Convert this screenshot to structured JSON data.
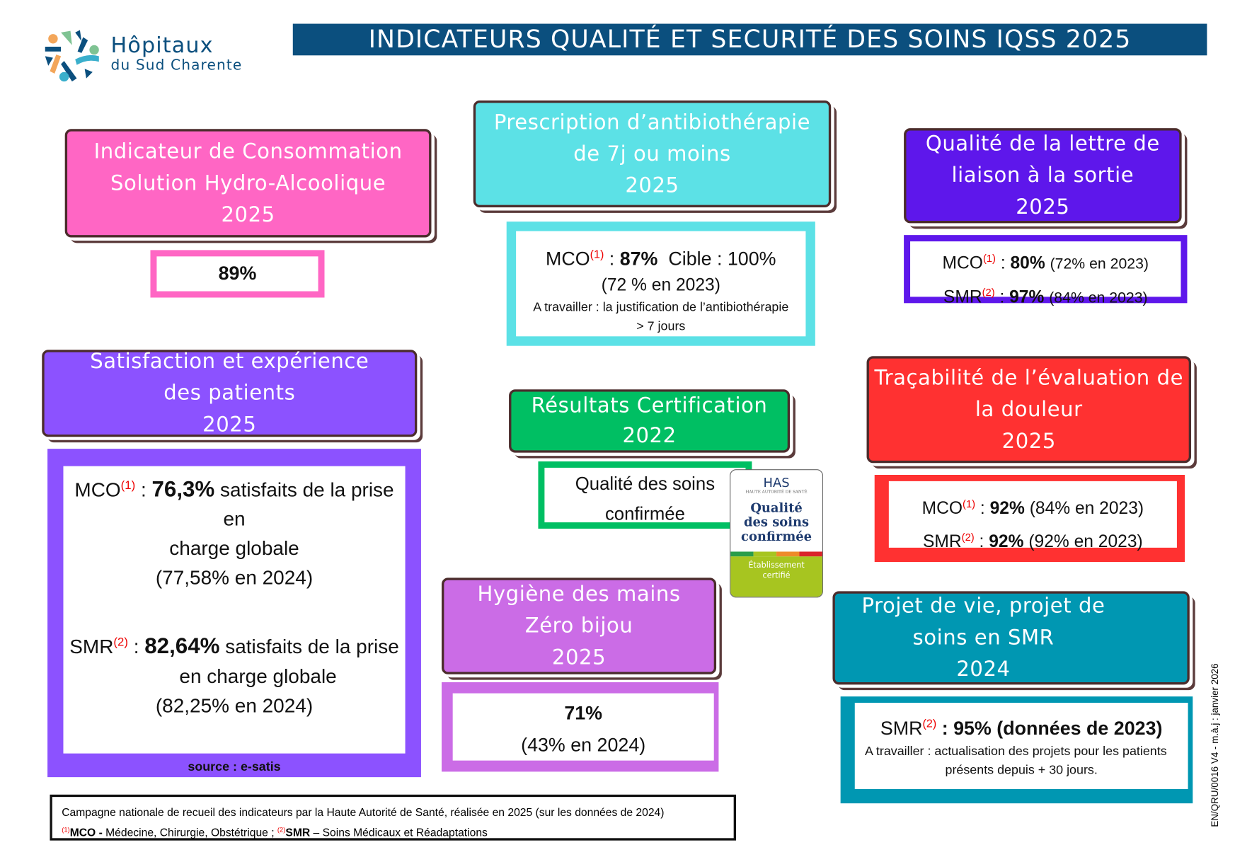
{
  "logo": {
    "line1": "Hôpitaux",
    "line2": "du Sud Charente"
  },
  "title": "INDICATEURS QUALITÉ ET SECURITÉ DES SOINS IQSS 2025",
  "colors": {
    "pink": "#ff66c4",
    "cyan": "#5ce1e6",
    "indigo": "#5e17eb",
    "violet": "#8c52ff",
    "green": "#00bf63",
    "orchid": "#cb6ce6",
    "red": "#ff3131",
    "teal": "#0097b2",
    "navy": "#0b4f7e"
  },
  "cards": {
    "sha": {
      "l1": "Indicateur de Consommation",
      "l2": "Solution Hydro-Alcoolique",
      "l3": "2025",
      "value": "89%"
    },
    "antibio": {
      "l1": "Prescription d’antibiothérapie",
      "l2": "de 7j ou moins",
      "l3": "2025",
      "mco": "MCO",
      "sup": "(1)",
      "sep": " : ",
      "value": "87%",
      "target": "Cible : 100%",
      "prev": "(72 % en 2023)",
      "work1": "A travailler : la justification de l’antibiothérapie",
      "work2": "> 7 jours"
    },
    "lettre": {
      "l1": "Qualité de la lettre de",
      "l2": "liaison à la sortie",
      "l3": "2025",
      "mco": "MCO",
      "sup1": "(1)",
      "mco_value": "80%",
      "mco_prev": "(72% en 2023)",
      "smr": "SMR",
      "sup2": "(2)",
      "smr_value": "97%",
      "smr_prev": "(84% en 2023)"
    },
    "satisfaction": {
      "l1": "Satisfaction et expérience",
      "l2": "des patients",
      "l3": "2025",
      "mco": "MCO",
      "sup1": "(1)",
      "mco_value": "76,3%",
      "mco_text1": "satisfaits de la prise en",
      "mco_text2": "charge globale",
      "mco_prev": "(77,58% en 2024)",
      "smr": "SMR",
      "sup2": "(2)",
      "smr_value": "82,64%",
      "smr_text1": "satisfaits de la prise",
      "smr_text2": "en charge globale",
      "smr_prev": "(82,25% en 2024)",
      "source": "source : e-satis"
    },
    "certif": {
      "l1": "Résultats Certification",
      "l2": "2022",
      "v1": "Qualité des soins",
      "v2": "confirmée"
    },
    "douleur": {
      "l1": "Traçabilité de l’évaluation de",
      "l2": "la douleur",
      "l3": "2025",
      "mco": "MCO",
      "sup1": "(1)",
      "mco_value": "92%",
      "mco_prev": "(84% en 2023)",
      "smr": "SMR",
      "sup2": "(2)",
      "smr_value": "92%",
      "smr_prev": "(92% en 2023)"
    },
    "hygiene": {
      "l1": "Hygiène des mains",
      "l2": "Zéro bijou",
      "l3": "2025",
      "value": "71%",
      "prev": "(43% en 2024)"
    },
    "projet": {
      "l1": "Projet de vie, projet de",
      "l2": "soins en SMR",
      "l3": "2024",
      "smr": "SMR",
      "sup": "(2)",
      "value": ": 95% (données de 2023)",
      "work1": "A travailler : actualisation des projets pour les patients",
      "work2": "présents depuis + 30 jours."
    }
  },
  "has_badge": {
    "brand": "HAS",
    "sub": "HAUTE AUTORITÉ DE SANTÉ",
    "l1": "Qualité",
    "l2": "des soins",
    "l3": "confirmée",
    "f1": "Établissement",
    "f2": "certifié"
  },
  "footer": {
    "line1": "Campagne nationale de recueil des indicateurs par la Haute Autorité de Santé, réalisée en 2025 (sur les données de 2024)",
    "sup1": "(1)",
    "mco": "MCO - ",
    "mco_def": " Médecine, Chirurgie, Obstétrique ; ",
    "sup2": "(2)",
    "smr": "SMR",
    "smr_def": " – Soins Médicaux et Réadaptations"
  },
  "doc_ref": "EN/QRU/0016 V4 -  m.à.j : janvier 2026"
}
